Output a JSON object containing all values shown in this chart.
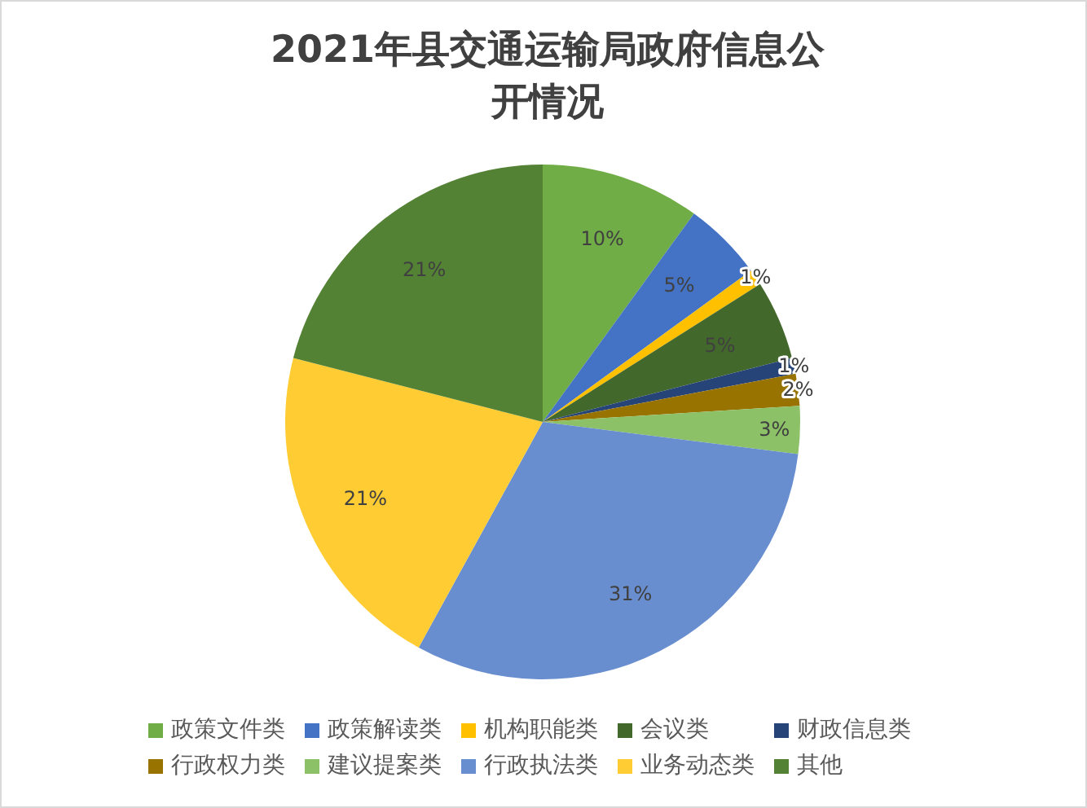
{
  "chart_data": {
    "type": "pie",
    "title": "2021年县交通运输局政府信息公开情况",
    "categories": [
      "政策文件类",
      "政策解读类",
      "机构职能类",
      "会议类",
      "财政信息类",
      "行政权力类",
      "建议提案类",
      "行政执法类",
      "业务动态类",
      "其他"
    ],
    "values": [
      10,
      5,
      1,
      5,
      1,
      2,
      3,
      31,
      21,
      21
    ],
    "colors": [
      "#70ad47",
      "#4472c4",
      "#ffc000",
      "#43682b",
      "#264478",
      "#997300",
      "#8cc168",
      "#698ed0",
      "#ffcd33",
      "#548235"
    ],
    "value_labels": [
      "10%",
      "5%",
      "1%",
      "5%",
      "1%",
      "2%",
      "3%",
      "31%",
      "21%",
      "21%"
    ],
    "legend": "bottom"
  }
}
